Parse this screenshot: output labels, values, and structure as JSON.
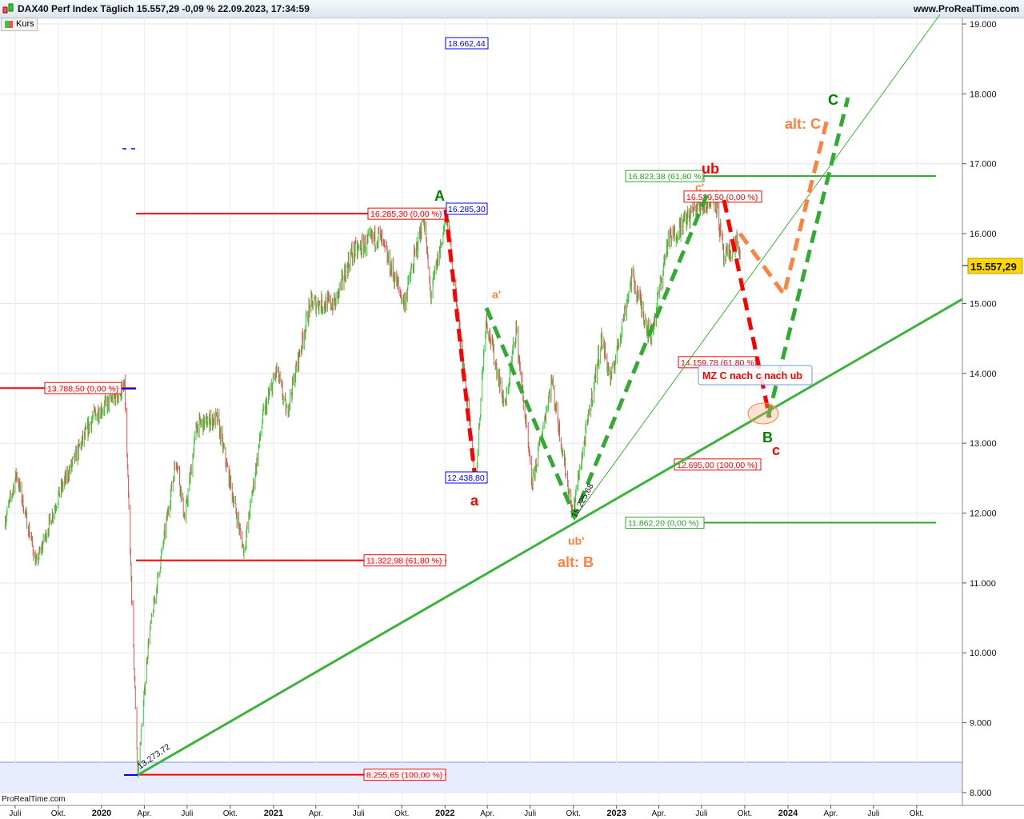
{
  "header": {
    "title": "DAX40 Perf Index Täglich 15.557,29 -0,09 % 22.09.2023, 17:34:59",
    "site": "www.ProRealTime.com",
    "legend": "Kurs",
    "footer": "ProRealTime.com"
  },
  "chart_data": {
    "type": "candlestick",
    "title": "DAX40 Perf Index Täglich",
    "instrument": "DAX40 Perf Index",
    "timeframe": "Täglich",
    "last": "15.557,29",
    "change": "-0,09 %",
    "timestamp": "22.09.2023, 17:34:59",
    "series_name": "Kurs",
    "ylim": [
      8000,
      19000
    ],
    "y_ticks": [
      "19.000",
      "18.000",
      "17.000",
      "16.000",
      "15.000",
      "14.000",
      "13.000",
      "12.000",
      "11.000",
      "10.000",
      "9.000",
      "8.000"
    ],
    "x_ticks": [
      [
        "Juli",
        "2019-07-01"
      ],
      [
        "Okt.",
        "2019-10-01"
      ],
      [
        "2020",
        "2020-01-01"
      ],
      [
        "Apr.",
        "2020-04-01"
      ],
      [
        "Juli",
        "2020-07-01"
      ],
      [
        "Okt.",
        "2020-10-01"
      ],
      [
        "2021",
        "2021-01-01"
      ],
      [
        "Apr.",
        "2021-04-01"
      ],
      [
        "Juli",
        "2021-07-01"
      ],
      [
        "Okt.",
        "2021-10-01"
      ],
      [
        "2022",
        "2022-01-01"
      ],
      [
        "Apr.",
        "2022-04-01"
      ],
      [
        "Juli",
        "2022-07-01"
      ],
      [
        "Okt.",
        "2022-10-01"
      ],
      [
        "2023",
        "2023-01-01"
      ],
      [
        "Apr.",
        "2023-04-01"
      ],
      [
        "Juli",
        "2023-07-01"
      ],
      [
        "Okt.",
        "2023-10-01"
      ],
      [
        "2024",
        "2024-01-01"
      ],
      [
        "Apr.",
        "2024-04-01"
      ],
      [
        "Juli",
        "2024-07-01"
      ],
      [
        "Okt.",
        "2024-10-01"
      ]
    ],
    "price_path": [
      [
        "2019-06-10",
        11900
      ],
      [
        "2019-07-04",
        12560
      ],
      [
        "2019-08-15",
        11270
      ],
      [
        "2019-10-01",
        12250
      ],
      [
        "2019-12-15",
        13390
      ],
      [
        "2020-02-19",
        13790
      ],
      [
        "2020-03-18",
        8256
      ],
      [
        "2020-04-10",
        10190
      ],
      [
        "2020-06-08",
        12800
      ],
      [
        "2020-06-26",
        11900
      ],
      [
        "2020-07-21",
        13250
      ],
      [
        "2020-09-03",
        13350
      ],
      [
        "2020-10-30",
        11450
      ],
      [
        "2020-12-10",
        13400
      ],
      [
        "2021-01-08",
        14050
      ],
      [
        "2021-01-29",
        13430
      ],
      [
        "2021-03-20",
        15000
      ],
      [
        "2021-05-12",
        15000
      ],
      [
        "2021-06-15",
        15700
      ],
      [
        "2021-08-13",
        15980
      ],
      [
        "2021-10-06",
        15000
      ],
      [
        "2021-11-17",
        16250
      ],
      [
        "2021-12-01",
        15100
      ],
      [
        "2022-01-05",
        16285
      ],
      [
        "2022-03-07",
        12439
      ],
      [
        "2022-03-29",
        14800
      ],
      [
        "2022-05-09",
        13500
      ],
      [
        "2022-06-01",
        14650
      ],
      [
        "2022-07-05",
        12400
      ],
      [
        "2022-08-16",
        13900
      ],
      [
        "2022-09-29",
        11976
      ],
      [
        "2022-11-30",
        14500
      ],
      [
        "2022-12-20",
        13900
      ],
      [
        "2023-02-03",
        15400
      ],
      [
        "2023-03-15",
        14500
      ],
      [
        "2023-04-20",
        15880
      ],
      [
        "2023-06-16",
        16350
      ],
      [
        "2023-07-31",
        16529
      ],
      [
        "2023-08-18",
        15600
      ],
      [
        "2023-09-15",
        15900
      ],
      [
        "2023-09-22",
        15557
      ]
    ],
    "last_price_label": "15.557,29",
    "fib_levels": [
      {
        "value": 16285.3,
        "text": "16.285,30 (0,00 %)",
        "color": "#ff0000"
      },
      {
        "value": 13788.5,
        "text": "13.788,50 (0,00 %)",
        "color": "#ff0000"
      },
      {
        "value": 11322.98,
        "text": "11.322,98 (61,80 %)",
        "color": "#ff0000"
      },
      {
        "value": 8255.65,
        "text": "8.255,65 (100,00 %)",
        "color": "#ff0000"
      },
      {
        "value": 16823.38,
        "text": "16.823,38 (61,80 %)",
        "color": "#2fa52f"
      },
      {
        "value": 11862.2,
        "text": "11.862,20 (0,00 %)",
        "color": "#2fa52f"
      },
      {
        "value": 16529.5,
        "text": "16.529,50 (0,00 %)",
        "color": "#ff0000"
      },
      {
        "value": 14159.78,
        "text": "14.159,78 (61,80 %)",
        "color": "#ff0000"
      },
      {
        "value": 12695.0,
        "text": "12.695,00 (100,00 %)",
        "color": "#ff0000"
      }
    ],
    "price_markers": [
      {
        "text": "18.662,44",
        "color": "#0000ff"
      },
      {
        "text": "16.285,30",
        "color": "#0000ff"
      },
      {
        "text": "12.438,80",
        "color": "#0000ff"
      }
    ],
    "trendline_labels": [
      "13.273,72",
      "15.225,68"
    ],
    "wave_labels": {
      "A": "A",
      "a": "a",
      "a_prime": "a'",
      "ub_prime": "ub'",
      "alt_B": "alt: B",
      "ub": "ub",
      "c_prime": "c'",
      "B": "B",
      "c": "c",
      "alt_C": "alt: C",
      "C": "C"
    },
    "note": "MZ C nach c nach ub",
    "colors": {
      "up": "#33cc33",
      "down": "#e05555",
      "green_wave": "#33aa33",
      "red_wave": "#ff0000",
      "orange_wave": "#ff8040",
      "trend": "#3cb43c",
      "label_green": "#008000",
      "label_orange": "#ff8040",
      "label_red": "#ff0000",
      "last_price_bg": "#ffd700"
    }
  }
}
